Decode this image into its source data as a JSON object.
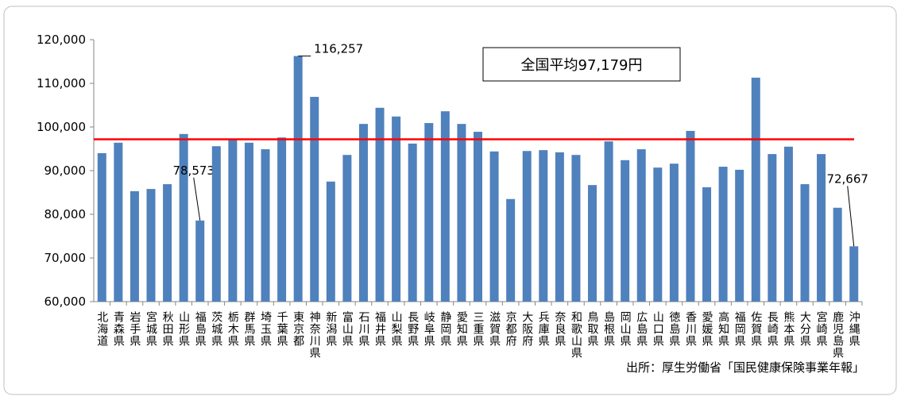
{
  "chart_data": {
    "type": "bar",
    "categories": [
      "北海道",
      "青森県",
      "岩手県",
      "宮城県",
      "秋田県",
      "山形県",
      "福島県",
      "茨城県",
      "栃木県",
      "群馬県",
      "埼玉県",
      "千葉県",
      "東京都",
      "神奈川県",
      "新潟県",
      "富山県",
      "石川県",
      "福井県",
      "山梨県",
      "長野県",
      "岐阜県",
      "静岡県",
      "愛知県",
      "三重県",
      "滋賀県",
      "京都府",
      "大阪府",
      "兵庫県",
      "奈良県",
      "和歌山県",
      "鳥取県",
      "島根県",
      "岡山県",
      "広島県",
      "山口県",
      "徳島県",
      "香川県",
      "愛媛県",
      "高知県",
      "福岡県",
      "佐賀県",
      "長崎県",
      "熊本県",
      "大分県",
      "宮崎県",
      "鹿児島県",
      "沖縄県"
    ],
    "values": [
      94000,
      96400,
      85300,
      85800,
      86900,
      98400,
      78573,
      95600,
      97100,
      96400,
      94900,
      97600,
      116257,
      106900,
      87500,
      93600,
      100700,
      104400,
      102400,
      96200,
      100900,
      103600,
      100700,
      98900,
      94400,
      83500,
      94500,
      94700,
      94200,
      93600,
      86700,
      96700,
      92400,
      94900,
      90700,
      91600,
      99100,
      86200,
      90900,
      90200,
      111300,
      93800,
      95500,
      86900,
      93800,
      81500,
      72667
    ],
    "value_labels": [
      null,
      null,
      null,
      null,
      null,
      null,
      "78,573",
      null,
      null,
      null,
      null,
      null,
      "116,257",
      null,
      null,
      null,
      null,
      null,
      null,
      null,
      null,
      null,
      null,
      null,
      null,
      null,
      null,
      null,
      null,
      null,
      null,
      null,
      null,
      null,
      null,
      null,
      null,
      null,
      null,
      null,
      null,
      null,
      null,
      null,
      null,
      null,
      "72,667"
    ],
    "color": "#4f81bd",
    "ylim": [
      60000,
      120000
    ],
    "yticks": [
      {
        "value": 60000,
        "label": "60,000"
      },
      {
        "value": 70000,
        "label": "70,000"
      },
      {
        "value": 80000,
        "label": "80,000"
      },
      {
        "value": 90000,
        "label": "90,000"
      },
      {
        "value": 100000,
        "label": "100,000"
      },
      {
        "value": 110000,
        "label": "110,000"
      },
      {
        "value": 120000,
        "label": "120,000"
      }
    ],
    "grid": false,
    "average": {
      "value": 97179,
      "label": "全国平均97,179円",
      "color": "#ff0000"
    },
    "source": "出所：厚生労働省「国民健康保険事業年報」"
  }
}
